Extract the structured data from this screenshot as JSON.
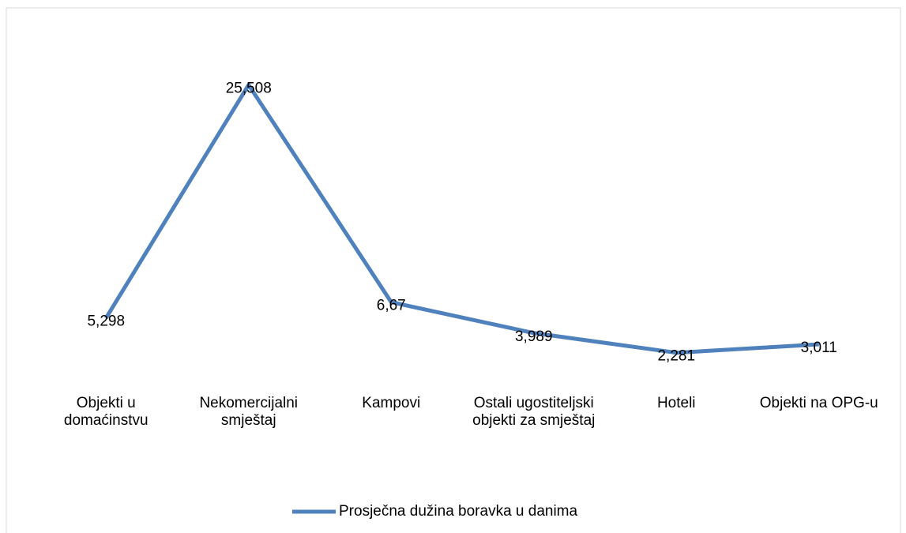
{
  "chart_data": {
    "type": "line",
    "categories": [
      "Objekti u domaćinstvu",
      "Nekomercijalni smještaj",
      "Kampovi",
      "Ostali ugostiteljski objekti za smještaj",
      "Hoteli",
      "Objekti na OPG-u"
    ],
    "series": [
      {
        "name": "Prosječna dužina boravka u danima",
        "color": "#4f81bd",
        "values": [
          5.298,
          25.508,
          6.67,
          3.989,
          2.281,
          3.011
        ],
        "value_labels": [
          "5,298",
          "25,508",
          "6,67",
          "3,989",
          "2,281",
          "3,011"
        ]
      }
    ],
    "ylim": [
      0,
      30
    ],
    "legend": "bottom"
  }
}
